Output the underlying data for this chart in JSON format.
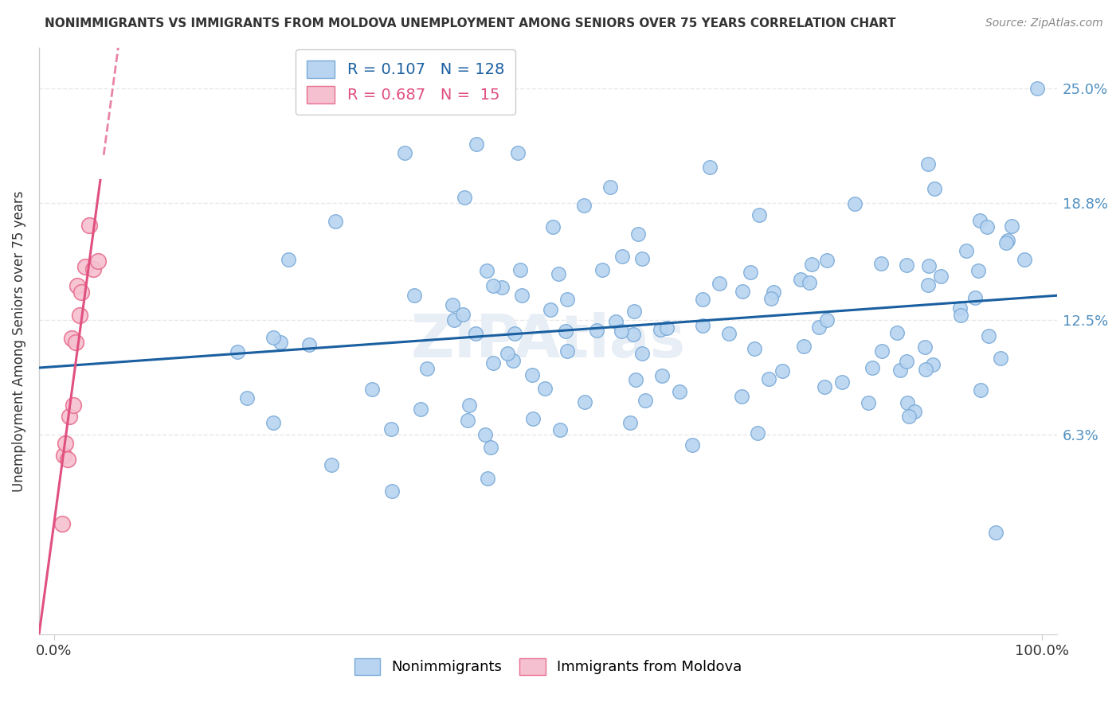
{
  "title": "NONIMMIGRANTS VS IMMIGRANTS FROM MOLDOVA UNEMPLOYMENT AMONG SENIORS OVER 75 YEARS CORRELATION CHART",
  "source": "Source: ZipAtlas.com",
  "ylabel": "Unemployment Among Seniors over 75 years",
  "ytick_vals": [
    0.063,
    0.125,
    0.188,
    0.25
  ],
  "ytick_labels": [
    "6.3%",
    "12.5%",
    "18.8%",
    "25.0%"
  ],
  "xmin": -0.015,
  "xmax": 1.015,
  "ymin": -0.045,
  "ymax": 0.272,
  "r_nonimm": 0.107,
  "n_nonimm": 128,
  "r_imm": 0.687,
  "n_imm": 15,
  "blue_color": "#b8d4f0",
  "blue_edge": "#7aaad8",
  "pink_color": "#f5c0d0",
  "pink_edge": "#e87090",
  "trend_blue": "#1a5fa0",
  "trend_pink": "#e05080",
  "background": "#ffffff",
  "grid_color": "#e8e8e8",
  "watermark_color": "#e8eef5",
  "legend_edge": "#cccccc",
  "ytick_color": "#5090c0",
  "xtick_color": "#333333",
  "ylabel_color": "#333333",
  "title_color": "#333333",
  "source_color": "#888888"
}
